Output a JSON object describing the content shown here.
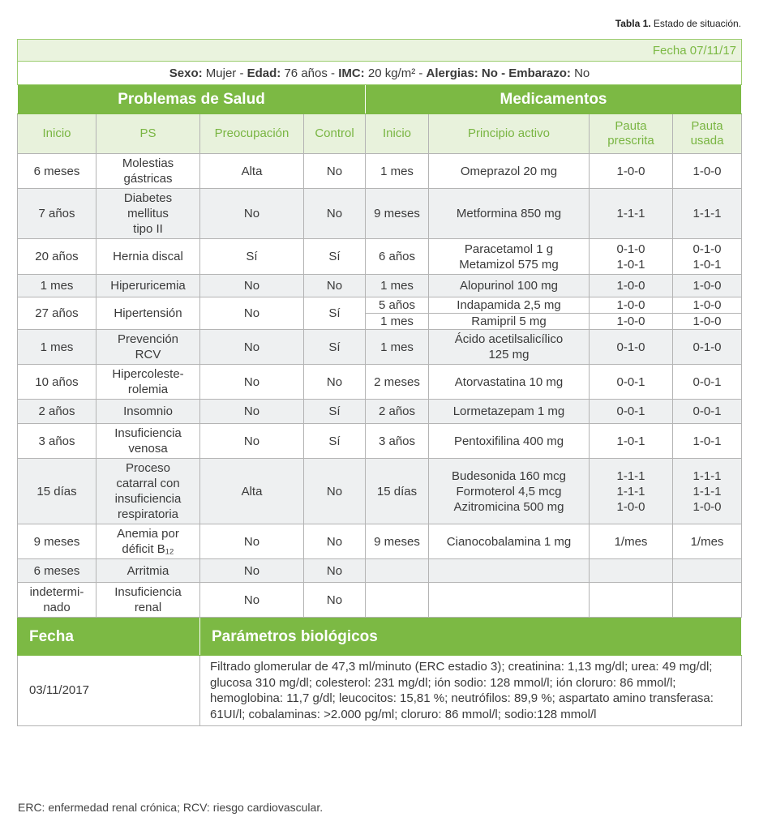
{
  "caption": {
    "label": "Tabla 1.",
    "text": " Estado de situación."
  },
  "fecha_band": "Fecha 07/11/17",
  "patient": [
    {
      "k": "Sexo:",
      "v": " Mujer - "
    },
    {
      "k": "Edad:",
      "v": " 76 años - "
    },
    {
      "k": "IMC:",
      "v": " 20 kg/m² - "
    },
    {
      "k": "Alergias: No - Embarazo:",
      "v": " No"
    }
  ],
  "sections": {
    "ps": "Problemas de Salud",
    "meds": "Medicamentos"
  },
  "columns": [
    "Inicio",
    "PS",
    "Preocupación",
    "Control",
    "Inicio",
    "Principio activo",
    "Pauta\nprescrita",
    "Pauta\nusada"
  ],
  "rows": [
    {
      "ps": [
        "6 meses",
        "Molestias\ngástricas",
        "Alta",
        "No"
      ],
      "meds": [
        [
          "1 mes",
          "Omeprazol 20 mg",
          "1-0-0",
          "1-0-0"
        ]
      ]
    },
    {
      "ps": [
        "7 años",
        "Diabetes\nmellitus\ntipo II",
        "No",
        "No"
      ],
      "meds": [
        [
          "9 meses",
          "Metformina 850 mg",
          "1-1-1",
          "1-1-1"
        ]
      ]
    },
    {
      "ps": [
        "20 años",
        "Hernia discal",
        "Sí",
        "Sí"
      ],
      "meds": [
        [
          "6 años",
          "Paracetamol 1 g\nMetamizol 575 mg",
          "0-1-0\n1-0-1",
          "0-1-0\n1-0-1"
        ]
      ]
    },
    {
      "ps": [
        "1 mes",
        "Hiperuricemia",
        "No",
        "No"
      ],
      "meds": [
        [
          "1 mes",
          "Alopurinol 100 mg",
          "1-0-0",
          "1-0-0"
        ]
      ]
    },
    {
      "ps": [
        "27 años",
        "Hipertensión",
        "No",
        "Sí"
      ],
      "meds": [
        [
          "5 años",
          "Indapamida 2,5 mg",
          "1-0-0",
          "1-0-0"
        ],
        [
          "1 mes",
          "Ramipril 5 mg",
          "1-0-0",
          "1-0-0"
        ]
      ]
    },
    {
      "ps": [
        "1 mes",
        "Prevención\nRCV",
        "No",
        "Sí"
      ],
      "meds": [
        [
          "1 mes",
          "Ácido acetilsalicílico\n125 mg",
          "0-1-0",
          "0-1-0"
        ]
      ]
    },
    {
      "ps": [
        "10 años",
        "Hipercoleste-\nrolemia",
        "No",
        "No"
      ],
      "meds": [
        [
          "2 meses",
          "Atorvastatina 10 mg",
          "0-0-1",
          "0-0-1"
        ]
      ]
    },
    {
      "ps": [
        "2 años",
        "Insomnio",
        "No",
        "Sí"
      ],
      "meds": [
        [
          "2 años",
          "Lormetazepam 1 mg",
          "0-0-1",
          "0-0-1"
        ]
      ]
    },
    {
      "ps": [
        "3 años",
        "Insuficiencia\nvenosa",
        "No",
        "Sí"
      ],
      "meds": [
        [
          "3 años",
          "Pentoxifilina 400 mg",
          "1-0-1",
          "1-0-1"
        ]
      ]
    },
    {
      "ps": [
        "15 días",
        "Proceso\ncatarral con\ninsuficiencia\nrespiratoria",
        "Alta",
        "No"
      ],
      "meds": [
        [
          "15 días",
          "Budesonida 160 mcg\nFormoterol 4,5 mcg\nAzitromicina 500 mg",
          "1-1-1\n1-1-1\n1-0-0",
          "1-1-1\n1-1-1\n1-0-0"
        ]
      ]
    },
    {
      "ps": [
        "9 meses",
        "Anemia por\ndéficit B₁₂",
        "No",
        "No"
      ],
      "meds": [
        [
          "9 meses",
          "Cianocobalamina 1 mg",
          "1/mes",
          "1/mes"
        ]
      ]
    },
    {
      "ps": [
        "6 meses",
        "Arritmia",
        "No",
        "No"
      ],
      "meds": [
        [
          "",
          "",
          "",
          ""
        ]
      ]
    },
    {
      "ps": [
        "indetermi-\nnado",
        "Insuficiencia\nrenal",
        "No",
        "No"
      ],
      "meds": [
        [
          "",
          "",
          "",
          ""
        ]
      ]
    }
  ],
  "bio": {
    "fecha_header": "Fecha",
    "params_header": "Parámetros biológicos",
    "fecha": "03/11/2017",
    "params": "Filtrado glomerular de 47,3 ml/minuto (ERC estadio 3); creatinina: 1,13 mg/dl; urea: 49 mg/dl; glucosa 310 mg/dl; colesterol: 231 mg/dl; ión sodio: 128 mmol/l; ión cloruro: 86 mmol/l; hemoglobina: 11,7 g/dl; leucocitos: 15,81 %; neutrófilos: 89,9 %; aspartato amino transferasa: 61UI/l; cobalaminas: >2.000 pg/ml; cloruro: 86 mmol/l; sodio:128 mmol/l"
  },
  "footnote": "ERC: enfermedad renal crónica; RCV: riesgo cardiovascular.",
  "colors": {
    "accent": "#7cb944",
    "header_bg": "#e8f2dc",
    "border": "#b4b4b4"
  }
}
